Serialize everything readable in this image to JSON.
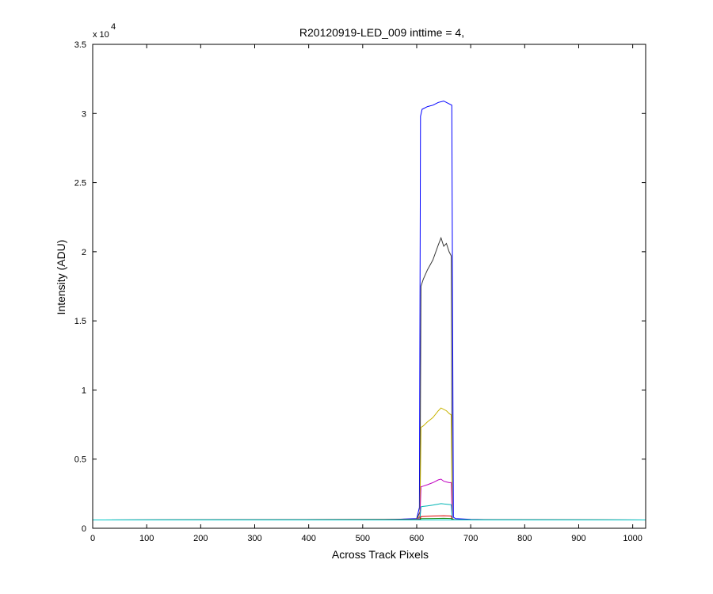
{
  "chart_data": {
    "type": "line",
    "title": "R20120919-LED_009 inttime = 4,",
    "xlabel": "Across Track Pixels",
    "ylabel": "Intensity (ADU)",
    "y_multiplier": "x 10",
    "y_multiplier_exp": "4",
    "xlim": [
      0,
      1024
    ],
    "ylim": [
      0,
      35000
    ],
    "xticks": [
      0,
      100,
      200,
      300,
      400,
      500,
      600,
      700,
      800,
      900,
      1000
    ],
    "yticks": [
      0,
      5000,
      10000,
      15000,
      20000,
      25000,
      30000,
      35000
    ],
    "ytick_labels": [
      "0",
      "0.5",
      "1",
      "1.5",
      "2",
      "2.5",
      "3",
      "3.5"
    ],
    "grid": false,
    "legend": "none",
    "series": [
      {
        "color": "#0000ff",
        "x": [
          0,
          520,
          560,
          600,
          605,
          607,
          610,
          620,
          630,
          640,
          650,
          660,
          665,
          668,
          672,
          700,
          750,
          1024
        ],
        "y": [
          600,
          620,
          650,
          700,
          1500,
          29800,
          30300,
          30500,
          30600,
          30800,
          30900,
          30700,
          30600,
          800,
          700,
          650,
          620,
          600
        ]
      },
      {
        "color": "#3a3a3a",
        "x": [
          0,
          600,
          606,
          608,
          612,
          620,
          630,
          640,
          645,
          650,
          655,
          660,
          664,
          666,
          670,
          1024
        ],
        "y": [
          600,
          650,
          1200,
          17500,
          18000,
          18700,
          19400,
          20500,
          21000,
          20400,
          20600,
          20000,
          19700,
          700,
          620,
          600
        ]
      },
      {
        "color": "#c8b400",
        "x": [
          0,
          600,
          606,
          608,
          612,
          620,
          630,
          640,
          645,
          650,
          655,
          660,
          664,
          666,
          670,
          1024
        ],
        "y": [
          600,
          640,
          900,
          7300,
          7400,
          7700,
          8000,
          8500,
          8700,
          8600,
          8500,
          8300,
          8200,
          680,
          620,
          600
        ]
      },
      {
        "color": "#c000c0",
        "x": [
          0,
          600,
          606,
          608,
          612,
          620,
          630,
          640,
          645,
          650,
          655,
          660,
          664,
          666,
          670,
          1024
        ],
        "y": [
          600,
          630,
          800,
          3000,
          3050,
          3150,
          3300,
          3500,
          3550,
          3400,
          3350,
          3300,
          3300,
          650,
          610,
          600
        ]
      },
      {
        "color": "#00b4b4",
        "x": [
          0,
          600,
          606,
          608,
          612,
          620,
          630,
          640,
          645,
          650,
          655,
          660,
          664,
          666,
          670,
          1024
        ],
        "y": [
          600,
          620,
          700,
          1550,
          1580,
          1620,
          1680,
          1750,
          1780,
          1760,
          1740,
          1720,
          1700,
          640,
          605,
          600
        ]
      },
      {
        "color": "#e00000",
        "x": [
          0,
          600,
          606,
          608,
          630,
          650,
          664,
          666,
          670,
          1024
        ],
        "y": [
          600,
          610,
          650,
          850,
          880,
          900,
          880,
          620,
          600,
          600
        ]
      },
      {
        "color": "#008000",
        "x": [
          0,
          600,
          606,
          608,
          630,
          650,
          664,
          666,
          670,
          1024
        ],
        "y": [
          600,
          605,
          620,
          700,
          710,
          720,
          710,
          610,
          600,
          600
        ]
      },
      {
        "color": "#00c8c8",
        "x": [
          0,
          1024
        ],
        "y": [
          600,
          600
        ]
      }
    ]
  }
}
